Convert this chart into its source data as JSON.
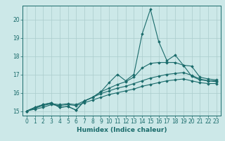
{
  "bg_color": "#cce8e8",
  "line_color": "#1a6b6b",
  "grid_color": "#aacccc",
  "xlabel": "Humidex (Indice chaleur)",
  "xlabel_fontsize": 6.5,
  "tick_fontsize": 5.5,
  "xlim": [
    -0.5,
    23.5
  ],
  "ylim": [
    14.75,
    20.75
  ],
  "yticks": [
    15,
    16,
    17,
    18,
    19,
    20
  ],
  "xticks": [
    0,
    1,
    2,
    3,
    4,
    5,
    6,
    7,
    8,
    9,
    10,
    11,
    12,
    13,
    14,
    15,
    16,
    17,
    18,
    19,
    20,
    21,
    22,
    23
  ],
  "lines": [
    {
      "x": [
        0,
        1,
        2,
        3,
        4,
        5,
        6,
        7,
        8,
        9,
        10,
        11,
        12,
        13,
        14,
        15,
        16,
        17,
        18,
        19,
        20,
        21,
        22,
        23
      ],
      "y": [
        15.0,
        15.2,
        15.35,
        15.45,
        15.2,
        15.25,
        15.05,
        15.55,
        15.75,
        16.05,
        16.25,
        16.45,
        16.6,
        16.85,
        17.35,
        17.6,
        17.65,
        17.65,
        17.65,
        17.5,
        17.45,
        16.85,
        16.75,
        16.7
      ]
    },
    {
      "x": [
        0,
        1,
        2,
        3,
        4,
        5,
        6,
        7,
        8,
        9,
        10,
        11,
        12,
        13,
        14,
        15,
        16,
        17,
        18,
        19,
        20,
        21,
        22,
        23
      ],
      "y": [
        15.0,
        15.2,
        15.35,
        15.45,
        15.2,
        15.25,
        15.05,
        15.55,
        15.75,
        16.05,
        16.55,
        17.0,
        16.65,
        17.0,
        19.2,
        20.55,
        18.8,
        17.75,
        18.05,
        17.5,
        16.9,
        16.7,
        16.65,
        16.65
      ]
    },
    {
      "x": [
        0,
        1,
        2,
        3,
        4,
        5,
        6,
        7,
        8,
        9,
        10,
        11,
        12,
        13,
        14,
        15,
        16,
        17,
        18,
        19,
        20,
        21,
        22,
        23
      ],
      "y": [
        15.0,
        15.15,
        15.3,
        15.4,
        15.35,
        15.4,
        15.35,
        15.55,
        15.75,
        15.95,
        16.1,
        16.25,
        16.35,
        16.5,
        16.65,
        16.8,
        16.9,
        17.0,
        17.05,
        17.1,
        16.95,
        16.75,
        16.65,
        16.6
      ]
    },
    {
      "x": [
        0,
        1,
        2,
        3,
        4,
        5,
        6,
        7,
        8,
        9,
        10,
        11,
        12,
        13,
        14,
        15,
        16,
        17,
        18,
        19,
        20,
        21,
        22,
        23
      ],
      "y": [
        15.0,
        15.1,
        15.2,
        15.35,
        15.3,
        15.35,
        15.3,
        15.45,
        15.6,
        15.75,
        15.9,
        16.0,
        16.1,
        16.2,
        16.35,
        16.45,
        16.55,
        16.65,
        16.7,
        16.75,
        16.65,
        16.55,
        16.5,
        16.5
      ]
    }
  ]
}
